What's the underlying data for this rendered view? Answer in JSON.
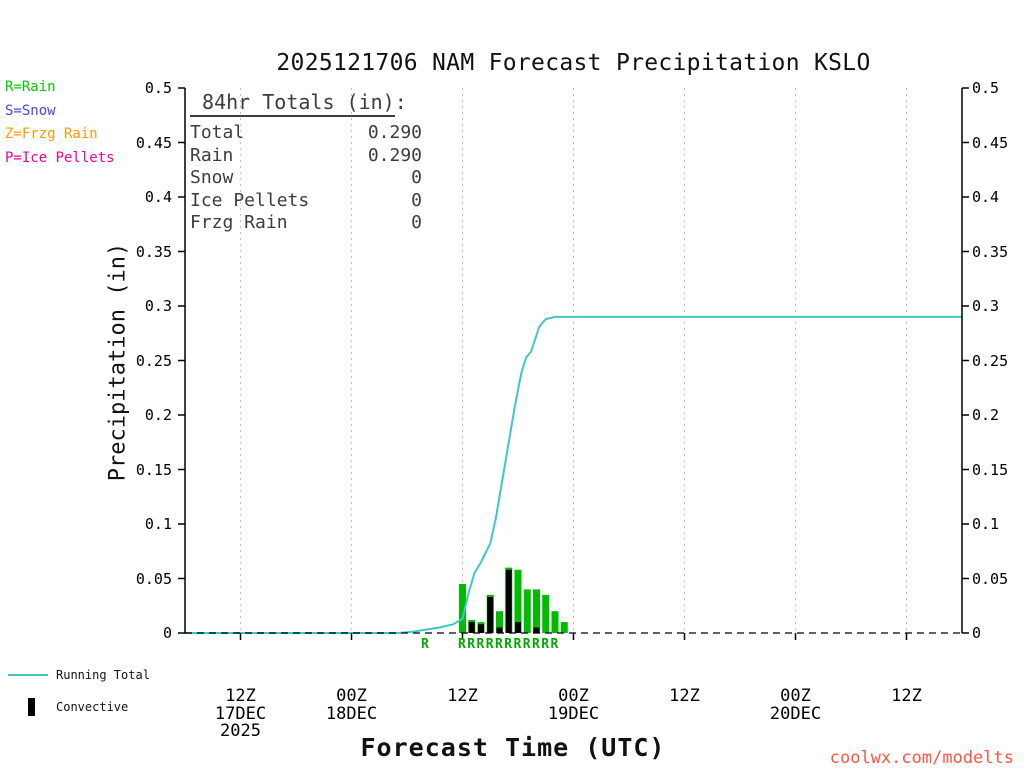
{
  "title": "2025121706 NAM Forecast Precipitation KSLO",
  "y_axis_label": "Precipitation (in)",
  "x_axis_label": "Forecast Time (UTC)",
  "watermark": "coolwx.com/modelts",
  "colors": {
    "running_total": "#3cc8c8",
    "rain": "#00bb00",
    "convective": "#000000",
    "rain_legend": "#00cc00",
    "snow_legend": "#4444ff",
    "frzg_legend": "#ff9900",
    "pellets_legend": "#ee0099",
    "watermark": "#ff5544",
    "grid": "#c0c0c0",
    "axis": "#000000",
    "totals_text": "#3c3c3c",
    "rain_marker": "#00aa00"
  },
  "type_legend": [
    {
      "label": "R=Rain",
      "color_key": "rain_legend"
    },
    {
      "label": "S=Snow",
      "color_key": "snow_legend"
    },
    {
      "label": "Z=Frzg Rain",
      "color_key": "frzg_legend"
    },
    {
      "label": "P=Ice Pellets",
      "color_key": "pellets_legend"
    }
  ],
  "totals": {
    "heading_underlined": " 84hr Totals (in)",
    "heading_suffix": ":",
    "rows": [
      {
        "label": "Total",
        "value": "0.290"
      },
      {
        "label": "Rain",
        "value": "0.290"
      },
      {
        "label": "Snow",
        "value": "0"
      },
      {
        "label": "Ice Pellets",
        "value": "0"
      },
      {
        "label": "Frzg Rain",
        "value": "0"
      }
    ]
  },
  "series_legend": {
    "line_label": "Running Total",
    "bar_label": "Convective"
  },
  "chart_data": {
    "type": "combo-line-bar",
    "title": "2025121706 NAM Forecast Precipitation KSLO",
    "xlabel": "Forecast Time (UTC)",
    "ylabel": "Precipitation (in)",
    "x_unit": "hours since model init 2025-12-17 06Z",
    "xlim": [
      0,
      84
    ],
    "ylim": [
      0,
      0.5
    ],
    "grid": "vertical-dotted",
    "y_ticks": [
      {
        "v": 0,
        "label": "0"
      },
      {
        "v": 0.05,
        "label": "0.05"
      },
      {
        "v": 0.1,
        "label": "0.1"
      },
      {
        "v": 0.15,
        "label": "0.15"
      },
      {
        "v": 0.2,
        "label": "0.2"
      },
      {
        "v": 0.25,
        "label": "0.25"
      },
      {
        "v": 0.3,
        "label": "0.3"
      },
      {
        "v": 0.35,
        "label": "0.35"
      },
      {
        "v": 0.4,
        "label": "0.4"
      },
      {
        "v": 0.45,
        "label": "0.45"
      },
      {
        "v": 0.5,
        "label": "0.5"
      }
    ],
    "x_ticks": [
      {
        "hour": 6,
        "label": "12Z",
        "date": "17DEC",
        "year": "2025"
      },
      {
        "hour": 18,
        "label": "00Z",
        "date": "18DEC"
      },
      {
        "hour": 30,
        "label": "12Z"
      },
      {
        "hour": 42,
        "label": "00Z",
        "date": "19DEC"
      },
      {
        "hour": 54,
        "label": "12Z"
      },
      {
        "hour": 66,
        "label": "00Z",
        "date": "20DEC"
      },
      {
        "hour": 78,
        "label": "12Z"
      }
    ],
    "running_total": {
      "name": "Running Total",
      "final_value": 0.29,
      "points": [
        [
          0,
          0
        ],
        [
          23,
          0
        ],
        [
          24.5,
          0.001
        ],
        [
          26,
          0.003
        ],
        [
          27.5,
          0.005
        ],
        [
          29,
          0.008
        ],
        [
          30,
          0.013
        ],
        [
          30.6,
          0.035
        ],
        [
          31.3,
          0.055
        ],
        [
          32,
          0.065
        ],
        [
          33,
          0.082
        ],
        [
          33.6,
          0.105
        ],
        [
          34.3,
          0.14
        ],
        [
          35,
          0.175
        ],
        [
          35.7,
          0.21
        ],
        [
          36.4,
          0.24
        ],
        [
          36.9,
          0.253
        ],
        [
          37.4,
          0.258
        ],
        [
          37.8,
          0.268
        ],
        [
          38.3,
          0.281
        ],
        [
          39,
          0.288
        ],
        [
          40,
          0.29
        ],
        [
          84,
          0.29
        ]
      ]
    },
    "rain_bars": {
      "name": "Rain (hourly precip)",
      "hours": [
        30,
        31,
        32,
        33,
        34,
        35,
        36,
        37,
        38,
        39,
        40,
        41
      ],
      "values": [
        0.045,
        0.012,
        0.01,
        0.035,
        0.02,
        0.06,
        0.058,
        0.04,
        0.04,
        0.035,
        0.02,
        0.01
      ]
    },
    "convective_bars": {
      "name": "Convective",
      "hours": [
        30,
        31,
        32,
        33,
        34,
        35,
        36,
        37,
        38,
        39,
        40,
        41
      ],
      "values": [
        0,
        0.01,
        0.008,
        0.033,
        0.005,
        0.058,
        0.01,
        0,
        0.005,
        0,
        0,
        0
      ]
    },
    "precip_type_markers": {
      "letter": "R",
      "hours": [
        26,
        30,
        31,
        32,
        33,
        34,
        35,
        36,
        37,
        38,
        39,
        40
      ]
    },
    "zero_line": {
      "value": 0,
      "style": "dashed"
    }
  }
}
